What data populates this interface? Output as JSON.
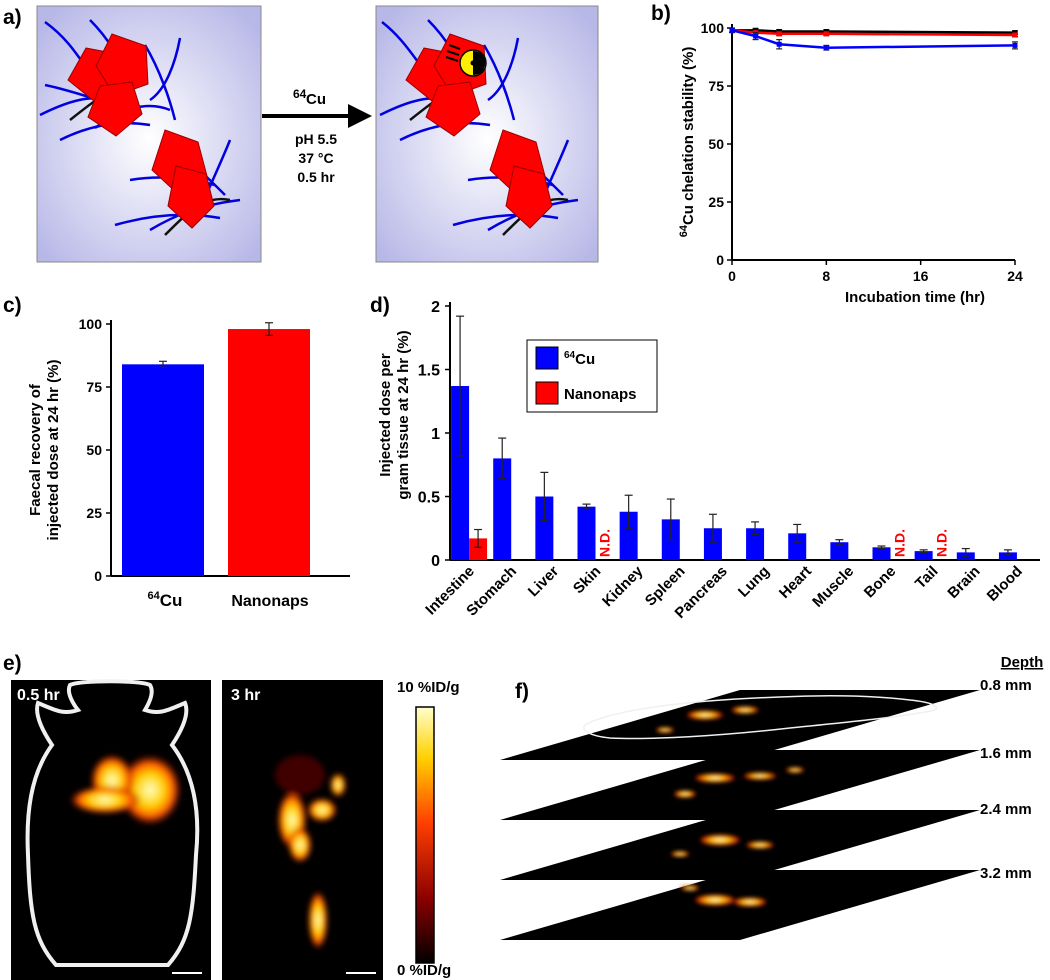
{
  "panel_labels": {
    "a": "a)",
    "b": "b)",
    "c": "c)",
    "d": "d)",
    "e": "e)",
    "f": "f)"
  },
  "schematic": {
    "isotope_sup": "64",
    "isotope": "Cu",
    "conditions": [
      "pH 5.5",
      "37 °C",
      "0.5 hr"
    ]
  },
  "pet": {
    "time1": "0.5 hr",
    "time2": "3 hr",
    "scale_max": "10 %ID/g",
    "scale_min": "0 %ID/g",
    "depth_header": "Depth",
    "depths": [
      "0.8 mm",
      "1.6 mm",
      "2.4 mm",
      "3.2 mm"
    ]
  },
  "colors": {
    "blue": "#0000ff",
    "red": "#ff0000",
    "black": "#000000",
    "hex_red": "#ff0000",
    "bg_lavender": "#b8b8e8"
  },
  "chart_data": [
    {
      "id": "b",
      "type": "line",
      "ylabel_sup": "64",
      "ylabel_text": "Cu",
      "ylabel_rest": " chelation stability (%)",
      "xlabel": "Incubation time (hr)",
      "xlim": [
        0,
        24
      ],
      "ylim": [
        0,
        100
      ],
      "xticks": [
        "0",
        "8",
        "16",
        "24"
      ],
      "yticks": [
        "0",
        "25",
        "50",
        "75",
        "100"
      ],
      "series": [
        {
          "name": "black",
          "color": "#000000",
          "x": [
            0,
            2,
            4,
            8,
            24
          ],
          "y": [
            99,
            99,
            98.5,
            98.5,
            98
          ],
          "err": [
            0.8,
            0.8,
            0.8,
            0.8,
            0.8
          ]
        },
        {
          "name": "red",
          "color": "#ff0000",
          "x": [
            0,
            2,
            4,
            8,
            24
          ],
          "y": [
            99,
            98,
            97.5,
            97.5,
            97
          ],
          "err": [
            0.8,
            0.8,
            0.8,
            0.8,
            0.8
          ]
        },
        {
          "name": "blue",
          "color": "#0000ff",
          "x": [
            0,
            2,
            4,
            8,
            24
          ],
          "y": [
            99,
            96.5,
            93,
            91.5,
            92.5
          ],
          "err": [
            1,
            1.5,
            2,
            1,
            1.5
          ]
        }
      ]
    },
    {
      "id": "c",
      "type": "bar",
      "ylabel_line1": "Faecal recovery of",
      "ylabel_line2": "injected dose at 24 hr (%)",
      "ylim": [
        0,
        100
      ],
      "yticks": [
        "0",
        "25",
        "50",
        "75",
        "100"
      ],
      "categories": [
        {
          "sup": "64",
          "label": "Cu"
        },
        {
          "sup": "",
          "label": "Nanonaps"
        }
      ],
      "values": [
        84,
        98
      ],
      "errors": [
        1.2,
        2.5
      ],
      "colors": [
        "#0000ff",
        "#ff0000"
      ]
    },
    {
      "id": "d",
      "type": "bar",
      "ylabel_line1": "Injected dose per",
      "ylabel_line2": "gram tissue at 24 hr (%)",
      "ylim": [
        0,
        2
      ],
      "yticks": [
        "0",
        "0.5",
        "1",
        "1.5",
        "2"
      ],
      "categories": [
        "Intestine",
        "Stomach",
        "Liver",
        "Skin",
        "Kidney",
        "Spleen",
        "Pancreas",
        "Lung",
        "Heart",
        "Muscle",
        "Bone",
        "Tail",
        "Brain",
        "Blood"
      ],
      "legend": [
        {
          "sup": "64",
          "label": "Cu",
          "color": "#0000ff"
        },
        {
          "sup": "",
          "label": "Nanonaps",
          "color": "#ff0000"
        }
      ],
      "series": [
        {
          "name": "64Cu",
          "color": "#0000ff",
          "values": [
            1.37,
            0.8,
            0.5,
            0.42,
            0.38,
            0.32,
            0.25,
            0.25,
            0.21,
            0.14,
            0.1,
            0.07,
            0.06,
            0.06
          ],
          "errors": [
            0.55,
            0.16,
            0.19,
            0.02,
            0.13,
            0.16,
            0.11,
            0.05,
            0.07,
            0.02,
            0.01,
            0.01,
            0.03,
            0.02
          ]
        },
        {
          "name": "Nanonaps",
          "color": "#ff0000",
          "values": [
            0.17,
            null,
            null,
            null,
            null,
            null,
            null,
            null,
            null,
            null,
            null,
            null,
            null,
            null
          ],
          "errors": [
            0.07,
            null,
            null,
            null,
            null,
            null,
            null,
            null,
            null,
            null,
            null,
            null,
            null,
            null
          ]
        }
      ],
      "nd_label": "N.D.",
      "nd_categories": [
        "Skin",
        "Bone",
        "Tail"
      ]
    }
  ]
}
